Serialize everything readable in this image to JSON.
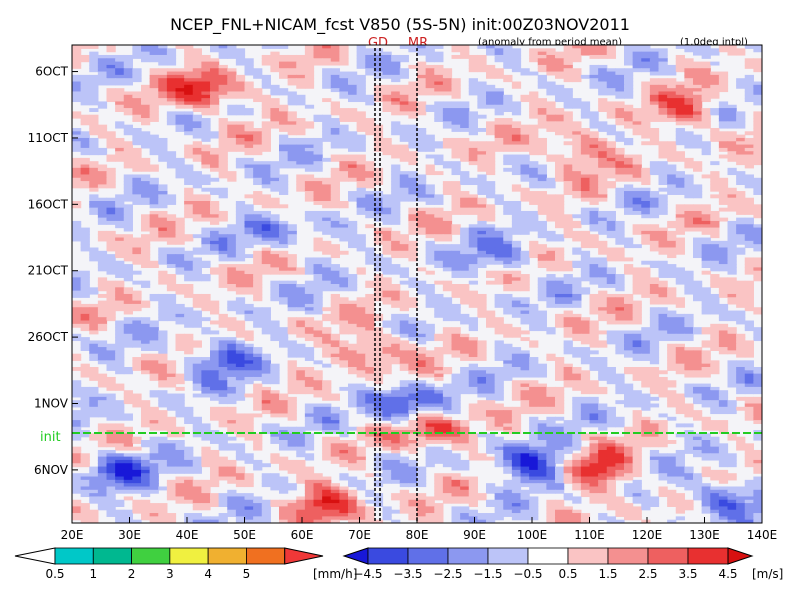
{
  "title": "NCEP_FNL+NICAM_fcst V850 (5S-5N) init:00Z03NOV2011",
  "subtitle_left": "(anomaly from period mean)",
  "subtitle_right": "(1.0deg intpl)",
  "markers": {
    "gd": {
      "label": "GD",
      "lon": 73
    },
    "mr": {
      "label": "MR",
      "lon": 80
    }
  },
  "init_label": "init",
  "colors": {
    "init_line": "#22cc22",
    "marker_label": "#cc2222",
    "blue_dark": "#1c2ee8",
    "red_dark": "#e01818"
  },
  "chart_data": {
    "type": "heatmap",
    "description_axes": "Hovmoller diagram: longitude vs time",
    "x": {
      "ticks": [
        "20E",
        "30E",
        "40E",
        "50E",
        "60E",
        "70E",
        "80E",
        "90E",
        "100E",
        "110E",
        "120E",
        "130E",
        "140E"
      ],
      "range": [
        20,
        140
      ]
    },
    "y": {
      "ticks": [
        "6OCT",
        "11OCT",
        "16OCT",
        "21OCT",
        "26OCT",
        "1NOV",
        "6NOV"
      ],
      "init": "3NOV",
      "range_days": [
        4,
        40
      ],
      "direction": "top-to-bottom"
    },
    "anomaly_features": [
      {
        "lon": 43,
        "day": 7.5,
        "value": 4.5
      },
      {
        "lon": 108,
        "day": 12,
        "value": 3.0
      },
      {
        "lon": 127,
        "day": 9,
        "value": 3.0
      },
      {
        "lon": 46,
        "day": 27.5,
        "value": -3.5
      },
      {
        "lon": 72,
        "day": 27,
        "value": 3.0
      },
      {
        "lon": 78,
        "day": 31,
        "value": -4.0
      },
      {
        "lon": 83,
        "day": 33,
        "value": 3.5
      },
      {
        "lon": 64,
        "day": 38.5,
        "value": 4.0
      },
      {
        "lon": 100,
        "day": 35.5,
        "value": -4.5
      },
      {
        "lon": 112,
        "day": 36,
        "value": 4.0
      },
      {
        "lon": 28,
        "day": 36,
        "value": -3.5
      },
      {
        "lon": 133,
        "day": 38,
        "value": -3.5
      },
      {
        "lon": 95,
        "day": 20,
        "value": -2.5
      },
      {
        "lon": 55,
        "day": 18,
        "value": -2.0
      }
    ],
    "precip_colorbar": {
      "ticks": [
        "0.5",
        "1",
        "2",
        "3",
        "4",
        "5"
      ],
      "unit": "[mm/h]",
      "colors": [
        "#00c8c8",
        "#00b890",
        "#40d040",
        "#f0f040",
        "#f0b030",
        "#f07020",
        "#f03838"
      ]
    },
    "wind_colorbar": {
      "ticks": [
        "−4.5",
        "−3.5",
        "−2.5",
        "−1.5",
        "−0.5",
        "0.5",
        "1.5",
        "2.5",
        "3.5",
        "4.5"
      ],
      "unit": "[m/s]",
      "colors": [
        "#1818d8",
        "#3a4ae0",
        "#6070e8",
        "#8c98f0",
        "#bcc4f8",
        "#ffffff",
        "#fac4c4",
        "#f49090",
        "#ee6060",
        "#e83030",
        "#d81010"
      ]
    }
  }
}
